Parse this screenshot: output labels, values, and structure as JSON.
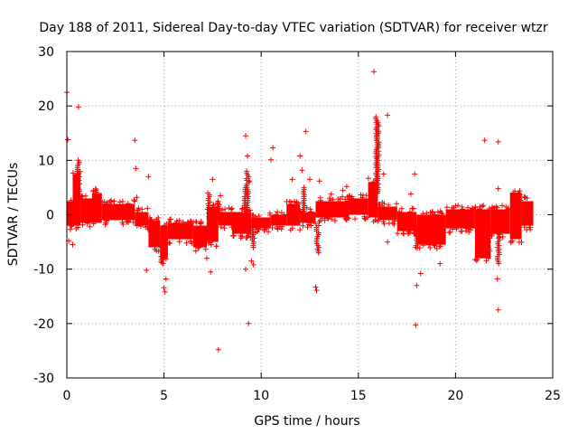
{
  "chart_data": {
    "type": "scatter",
    "title": "Day 188 of 2011, Sidereal Day-to-day VTEC variation (SDTVAR) for receiver wtzr",
    "xlabel": "GPS time / hours",
    "ylabel": "SDTVAR / TECUs",
    "xlim": [
      0,
      25
    ],
    "ylim": [
      -30,
      30
    ],
    "xticks": [
      0,
      5,
      10,
      15,
      20,
      25
    ],
    "yticks": [
      -30,
      -20,
      -10,
      0,
      10,
      20,
      30
    ],
    "xtick_labels": [
      "0",
      "5",
      "10",
      "15",
      "20",
      "25"
    ],
    "ytick_labels": [
      "-30",
      "-20",
      "-10",
      "0",
      "10",
      "20",
      "30"
    ],
    "grid": true,
    "marker": "+",
    "color": "#ff0000",
    "band_segments": [
      {
        "x": [
          0.0,
          0.3
        ],
        "low": -2.0,
        "high": 2.5
      },
      {
        "x": [
          0.3,
          0.7
        ],
        "low": -2.0,
        "high": 7.5
      },
      {
        "x": [
          0.7,
          1.3
        ],
        "low": -1.5,
        "high": 3.0
      },
      {
        "x": [
          1.3,
          1.8
        ],
        "low": -1.5,
        "high": 4.0
      },
      {
        "x": [
          1.8,
          3.5
        ],
        "low": -1.0,
        "high": 2.0
      },
      {
        "x": [
          3.5,
          4.2
        ],
        "low": -2.0,
        "high": 0.5
      },
      {
        "x": [
          4.2,
          4.8
        ],
        "low": -6.0,
        "high": -1.0
      },
      {
        "x": [
          4.8,
          5.2
        ],
        "low": -8.0,
        "high": -2.0
      },
      {
        "x": [
          5.2,
          6.5
        ],
        "low": -4.5,
        "high": -1.5
      },
      {
        "x": [
          6.5,
          7.2
        ],
        "low": -6.0,
        "high": -2.0
      },
      {
        "x": [
          7.2,
          7.8
        ],
        "low": -5.0,
        "high": 1.5
      },
      {
        "x": [
          7.8,
          8.5
        ],
        "low": -2.0,
        "high": 0.5
      },
      {
        "x": [
          8.5,
          9.5
        ],
        "low": -3.5,
        "high": 0.5
      },
      {
        "x": [
          9.5,
          10.5
        ],
        "low": -2.5,
        "high": -0.5
      },
      {
        "x": [
          10.5,
          11.3
        ],
        "low": -2.0,
        "high": 0.0
      },
      {
        "x": [
          11.3,
          12.0
        ],
        "low": -2.0,
        "high": 2.0
      },
      {
        "x": [
          12.0,
          12.8
        ],
        "low": -1.5,
        "high": 0.5
      },
      {
        "x": [
          12.8,
          14.5
        ],
        "low": -0.5,
        "high": 2.5
      },
      {
        "x": [
          14.5,
          15.5
        ],
        "low": 0.0,
        "high": 3.0
      },
      {
        "x": [
          15.5,
          16.0
        ],
        "low": -0.5,
        "high": 6.0
      },
      {
        "x": [
          16.0,
          17.0
        ],
        "low": -1.0,
        "high": 1.5
      },
      {
        "x": [
          17.0,
          18.0
        ],
        "low": -3.0,
        "high": 0.5
      },
      {
        "x": [
          18.0,
          19.5
        ],
        "low": -5.5,
        "high": 0.0
      },
      {
        "x": [
          19.5,
          21.0
        ],
        "low": -2.5,
        "high": 1.0
      },
      {
        "x": [
          21.0,
          21.8
        ],
        "low": -8.0,
        "high": 1.0
      },
      {
        "x": [
          21.8,
          22.8
        ],
        "low": -3.5,
        "high": 1.0
      },
      {
        "x": [
          22.8,
          23.4
        ],
        "low": -4.5,
        "high": 4.0
      },
      {
        "x": [
          23.4,
          24.0
        ],
        "low": -2.0,
        "high": 2.5
      }
    ],
    "spikes": [
      {
        "x": 0.6,
        "y_from": 2,
        "y_to": 10
      },
      {
        "x": 4.9,
        "y_from": -4,
        "y_to": -9
      },
      {
        "x": 5.0,
        "y_from": -4,
        "y_to": -8
      },
      {
        "x": 7.3,
        "y_from": -1,
        "y_to": 4
      },
      {
        "x": 7.8,
        "y_from": -1,
        "y_to": 2.5
      },
      {
        "x": 9.2,
        "y_from": -1,
        "y_to": 5
      },
      {
        "x": 9.3,
        "y_from": -2,
        "y_to": 8
      },
      {
        "x": 9.6,
        "y_from": -2,
        "y_to": -6
      },
      {
        "x": 12.2,
        "y_from": 0,
        "y_to": 5
      },
      {
        "x": 12.9,
        "y_from": -2,
        "y_to": -7
      },
      {
        "x": 15.95,
        "y_from": 4,
        "y_to": 18
      },
      {
        "x": 16.0,
        "y_from": 4,
        "y_to": 17
      },
      {
        "x": 18.0,
        "y_from": -2,
        "y_to": -6
      },
      {
        "x": 21.7,
        "y_from": -3,
        "y_to": -8
      },
      {
        "x": 22.2,
        "y_from": -3,
        "y_to": -9
      },
      {
        "x": 23.3,
        "y_from": 0,
        "y_to": 4
      }
    ],
    "outliers": [
      {
        "x": 0.0,
        "y": 22.5
      },
      {
        "x": 0.05,
        "y": 13.8
      },
      {
        "x": 0.1,
        "y": -4.8
      },
      {
        "x": 0.3,
        "y": -5.5
      },
      {
        "x": 0.6,
        "y": 19.8
      },
      {
        "x": 3.5,
        "y": 13.7
      },
      {
        "x": 3.55,
        "y": 8.5
      },
      {
        "x": 3.6,
        "y": 3.2
      },
      {
        "x": 4.2,
        "y": 7.0
      },
      {
        "x": 4.1,
        "y": -10.2
      },
      {
        "x": 5.0,
        "y": -13.4
      },
      {
        "x": 5.05,
        "y": -14.2
      },
      {
        "x": 5.1,
        "y": -11.8
      },
      {
        "x": 7.5,
        "y": 6.5
      },
      {
        "x": 7.4,
        "y": -10.5
      },
      {
        "x": 7.2,
        "y": -8.0
      },
      {
        "x": 7.9,
        "y": 3.5
      },
      {
        "x": 7.8,
        "y": -24.8
      },
      {
        "x": 9.2,
        "y": 14.5
      },
      {
        "x": 9.3,
        "y": 10.8
      },
      {
        "x": 9.4,
        "y": 6.2
      },
      {
        "x": 9.35,
        "y": -20.0
      },
      {
        "x": 9.2,
        "y": -10.0
      },
      {
        "x": 9.5,
        "y": -8.5
      },
      {
        "x": 9.6,
        "y": -9.2
      },
      {
        "x": 10.6,
        "y": 12.3
      },
      {
        "x": 10.5,
        "y": 10.1
      },
      {
        "x": 11.6,
        "y": 6.5
      },
      {
        "x": 12.0,
        "y": 10.8
      },
      {
        "x": 12.1,
        "y": 8.2
      },
      {
        "x": 12.3,
        "y": 15.3
      },
      {
        "x": 12.5,
        "y": 6.5
      },
      {
        "x": 12.8,
        "y": -13.3
      },
      {
        "x": 12.85,
        "y": -13.9
      },
      {
        "x": 13.0,
        "y": 6.2
      },
      {
        "x": 13.6,
        "y": 3.8
      },
      {
        "x": 14.2,
        "y": 4.5
      },
      {
        "x": 14.4,
        "y": 5.2
      },
      {
        "x": 15.8,
        "y": 26.3
      },
      {
        "x": 16.5,
        "y": 18.3
      },
      {
        "x": 16.3,
        "y": 7.5
      },
      {
        "x": 16.5,
        "y": -5.0
      },
      {
        "x": 17.7,
        "y": 3.8
      },
      {
        "x": 17.9,
        "y": 7.5
      },
      {
        "x": 18.0,
        "y": -13.0
      },
      {
        "x": 17.95,
        "y": -20.3
      },
      {
        "x": 18.2,
        "y": -10.8
      },
      {
        "x": 19.2,
        "y": -9.0
      },
      {
        "x": 21.5,
        "y": 13.7
      },
      {
        "x": 22.2,
        "y": 13.4
      },
      {
        "x": 22.2,
        "y": 4.8
      },
      {
        "x": 22.15,
        "y": -11.8
      },
      {
        "x": 22.2,
        "y": -17.5
      },
      {
        "x": 21.2,
        "y": -5.5
      },
      {
        "x": 23.2,
        "y": 3.8
      }
    ]
  }
}
